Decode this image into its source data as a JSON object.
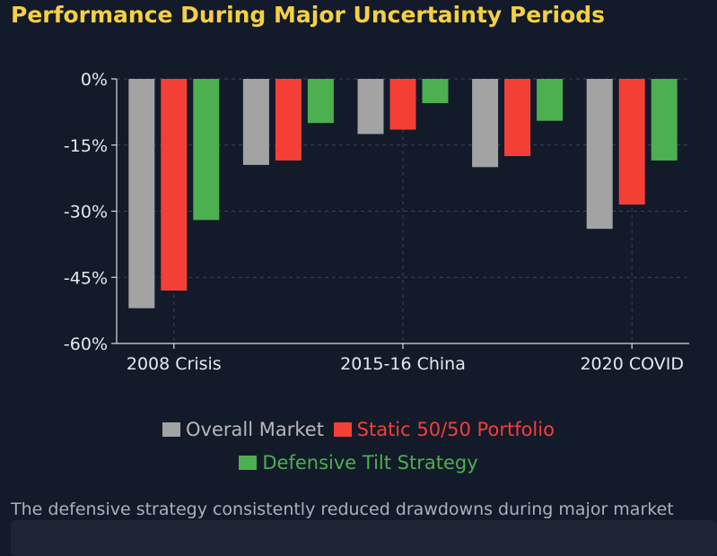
{
  "page": {
    "title": "Performance During Major Uncertainty Periods"
  },
  "chart_data": {
    "type": "bar",
    "title": "",
    "xlabel": "",
    "ylabel": "",
    "categories": [
      "2008 Crisis",
      "",
      "2015-16 China",
      "",
      "2020 COVID"
    ],
    "tick_labels": [
      "2008 Crisis",
      "2015-16 China",
      "2020 COVID"
    ],
    "y_ticks": [
      "0%",
      "-15%",
      "-30%",
      "-45%",
      "-60%"
    ],
    "ylim": [
      -60,
      0
    ],
    "grid": true,
    "legend_placement": "bottom-center",
    "series": [
      {
        "name": "Overall Market",
        "color": "#a3a3a3",
        "values": [
          -52,
          -19.5,
          -12.5,
          -20,
          -34
        ]
      },
      {
        "name": "Static 50/50 Portfolio",
        "color": "#f43f37",
        "values": [
          -48,
          -18.5,
          -11.5,
          -17.5,
          -28.5
        ]
      },
      {
        "name": "Defensive Tilt Strategy",
        "color": "#4caf50",
        "values": [
          -32,
          -10,
          -5.5,
          -9.5,
          -18.5
        ]
      }
    ]
  },
  "caption": "The defensive strategy consistently reduced drawdowns during major market stress periods."
}
